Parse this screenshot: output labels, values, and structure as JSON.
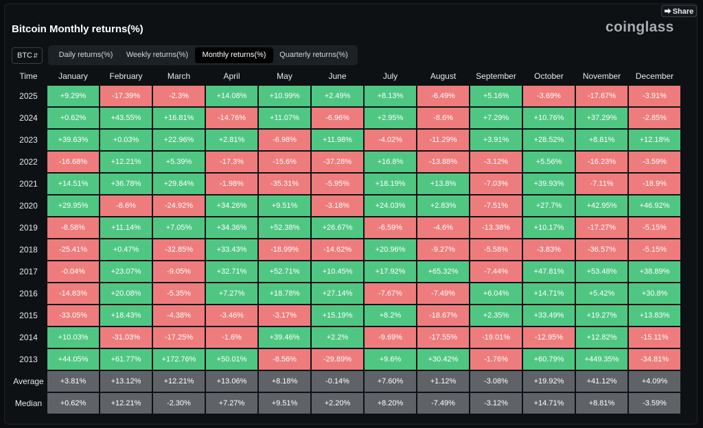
{
  "header": {
    "share_label": "Share",
    "title": "Bitcoin Monthly returns(%)",
    "brand": "coinglass"
  },
  "coin_select": {
    "value": "BTC"
  },
  "tabs": [
    {
      "label": "Daily returns(%)",
      "active": false
    },
    {
      "label": "Weekly returns(%)",
      "active": false
    },
    {
      "label": "Monthly returns(%)",
      "active": true
    },
    {
      "label": "Quarterly returns(%)",
      "active": false
    }
  ],
  "colors": {
    "positive": "#4fc783",
    "negative": "#ef7c7c",
    "stat": "#5f6368"
  },
  "table": {
    "time_header": "Time",
    "months": [
      "January",
      "February",
      "March",
      "April",
      "May",
      "June",
      "July",
      "August",
      "September",
      "October",
      "November",
      "December"
    ],
    "rows": [
      {
        "year": "2025",
        "values": [
          "+9.29%",
          "-17.39%",
          "-2.3%",
          "+14.08%",
          "+10.99%",
          "+2.49%",
          "+8.13%",
          "-6.49%",
          "+5.16%",
          "-3.69%",
          "-17.67%",
          "-3.91%"
        ]
      },
      {
        "year": "2024",
        "values": [
          "+0.62%",
          "+43.55%",
          "+16.81%",
          "-14.76%",
          "+11.07%",
          "-6.96%",
          "+2.95%",
          "-8.6%",
          "+7.29%",
          "+10.76%",
          "+37.29%",
          "-2.85%"
        ]
      },
      {
        "year": "2023",
        "values": [
          "+39.63%",
          "+0.03%",
          "+22.96%",
          "+2.81%",
          "-6.98%",
          "+11.98%",
          "-4.02%",
          "-11.29%",
          "+3.91%",
          "+28.52%",
          "+8.81%",
          "+12.18%"
        ]
      },
      {
        "year": "2022",
        "values": [
          "-16.68%",
          "+12.21%",
          "+5.39%",
          "-17.3%",
          "-15.6%",
          "-37.28%",
          "+16.8%",
          "-13.88%",
          "-3.12%",
          "+5.56%",
          "-16.23%",
          "-3.59%"
        ]
      },
      {
        "year": "2021",
        "values": [
          "+14.51%",
          "+36.78%",
          "+29.84%",
          "-1.98%",
          "-35.31%",
          "-5.95%",
          "+18.19%",
          "+13.8%",
          "-7.03%",
          "+39.93%",
          "-7.11%",
          "-18.9%"
        ]
      },
      {
        "year": "2020",
        "values": [
          "+29.95%",
          "-8.6%",
          "-24.92%",
          "+34.26%",
          "+9.51%",
          "-3.18%",
          "+24.03%",
          "+2.83%",
          "-7.51%",
          "+27.7%",
          "+42.95%",
          "+46.92%"
        ]
      },
      {
        "year": "2019",
        "values": [
          "-8.58%",
          "+11.14%",
          "+7.05%",
          "+34.36%",
          "+52.38%",
          "+26.67%",
          "-6.59%",
          "-4.6%",
          "-13.38%",
          "+10.17%",
          "-17.27%",
          "-5.15%"
        ]
      },
      {
        "year": "2018",
        "values": [
          "-25.41%",
          "+0.47%",
          "-32.85%",
          "+33.43%",
          "-18.99%",
          "-14.62%",
          "+20.96%",
          "-9.27%",
          "-5.58%",
          "-3.83%",
          "-36.57%",
          "-5.15%"
        ]
      },
      {
        "year": "2017",
        "values": [
          "-0.04%",
          "+23.07%",
          "-9.05%",
          "+32.71%",
          "+52.71%",
          "+10.45%",
          "+17.92%",
          "+65.32%",
          "-7.44%",
          "+47.81%",
          "+53.48%",
          "+38.89%"
        ]
      },
      {
        "year": "2016",
        "values": [
          "-14.83%",
          "+20.08%",
          "-5.35%",
          "+7.27%",
          "+18.78%",
          "+27.14%",
          "-7.67%",
          "-7.49%",
          "+6.04%",
          "+14.71%",
          "+5.42%",
          "+30.8%"
        ]
      },
      {
        "year": "2015",
        "values": [
          "-33.05%",
          "+18.43%",
          "-4.38%",
          "-3.46%",
          "-3.17%",
          "+15.19%",
          "+8.2%",
          "-18.67%",
          "+2.35%",
          "+33.49%",
          "+19.27%",
          "+13.83%"
        ]
      },
      {
        "year": "2014",
        "values": [
          "+10.03%",
          "-31.03%",
          "-17.25%",
          "-1.6%",
          "+39.46%",
          "+2.2%",
          "-9.69%",
          "-17.55%",
          "-19.01%",
          "-12.95%",
          "+12.82%",
          "-15.11%"
        ]
      },
      {
        "year": "2013",
        "values": [
          "+44.05%",
          "+61.77%",
          "+172.76%",
          "+50.01%",
          "-8.56%",
          "-29.89%",
          "+9.6%",
          "+30.42%",
          "-1.76%",
          "+60.79%",
          "+449.35%",
          "-34.81%"
        ]
      }
    ],
    "stats": [
      {
        "label": "Average",
        "values": [
          "+3.81%",
          "+13.12%",
          "+12.21%",
          "+13.06%",
          "+8.18%",
          "-0.14%",
          "+7.60%",
          "+1.12%",
          "-3.08%",
          "+19.92%",
          "+41.12%",
          "+4.09%"
        ]
      },
      {
        "label": "Median",
        "values": [
          "+0.62%",
          "+12.21%",
          "-2.30%",
          "+7.27%",
          "+9.51%",
          "+2.20%",
          "+8.20%",
          "-7.49%",
          "-3.12%",
          "+14.71%",
          "+8.81%",
          "-3.59%"
        ]
      }
    ]
  }
}
